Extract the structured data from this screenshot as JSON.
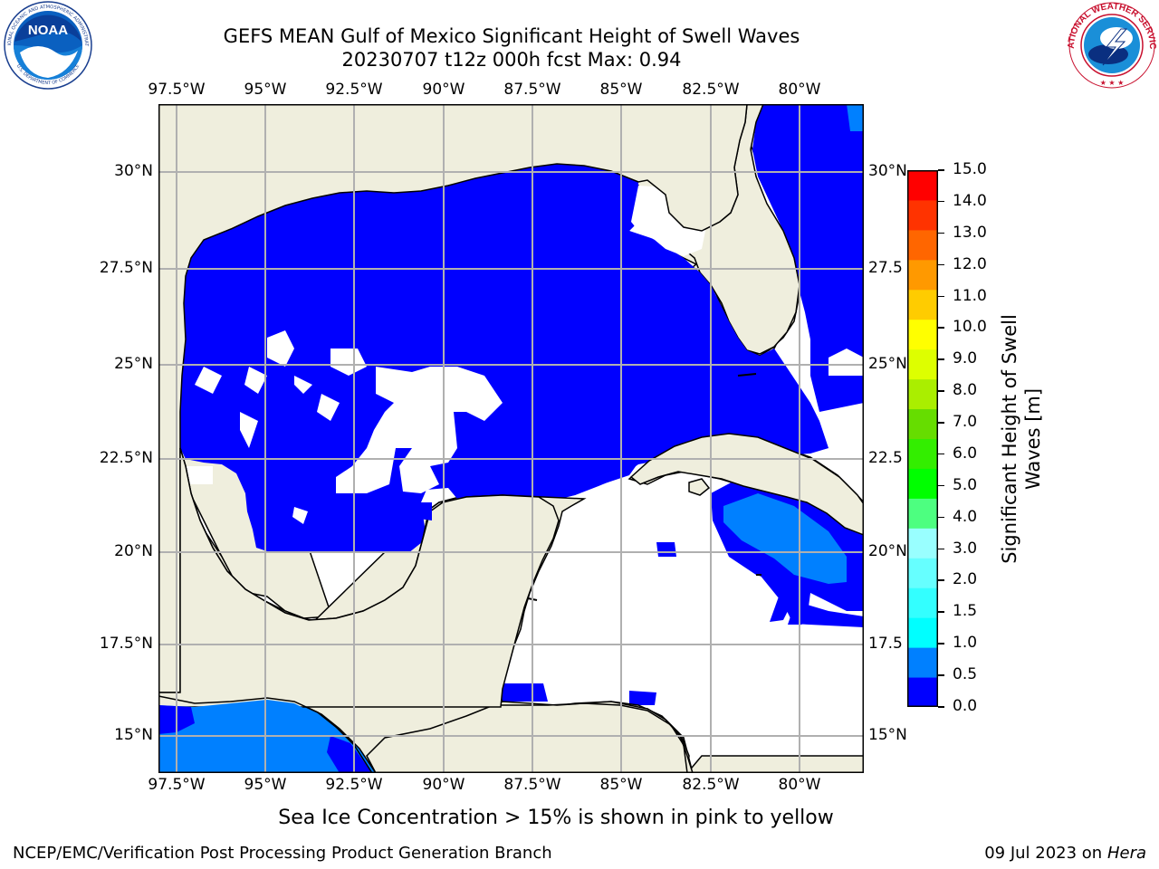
{
  "header": {
    "title_line1": "GEFS MEAN Gulf of Mexico Significant Height of Swell Waves",
    "title_line2": "20230707 t12z 000h fcst   Max: 0.94"
  },
  "logos": {
    "noaa_text": "NOAA",
    "noaa_ring_text": "NATIONAL OCEANIC AND ATMOSPHERIC ADMINISTRATION",
    "noaa_ring_bottom": "U.S. DEPARTMENT OF COMMERCE",
    "nws_ring_text": "NATIONAL WEATHER SERVICE"
  },
  "map": {
    "lon_labels": [
      "97.5°W",
      "95°W",
      "92.5°W",
      "90°W",
      "87.5°W",
      "85°W",
      "82.5°W",
      "80°W"
    ],
    "lat_labels": [
      "30°N",
      "27.5°N",
      "25°N",
      "22.5°N",
      "20°N",
      "17.5°N",
      "15°N"
    ],
    "right_lat_labels": [
      "30°N",
      "27.5",
      "25°N",
      "22.5",
      "20°N",
      "17.5",
      "15°N"
    ],
    "colors": {
      "land": "#efeedd",
      "water_low": "#0000ff",
      "water_mid": "#0080ff",
      "grid": "#b0b0b0"
    }
  },
  "colorbar": {
    "label_line1": "Significant Height of Swell",
    "label_line2": "Waves [m]",
    "ticks": [
      "0.0",
      "0.5",
      "1.0",
      "1.5",
      "2.0",
      "3.0",
      "4.0",
      "5.0",
      "6.0",
      "7.0",
      "8.0",
      "9.0",
      "10.0",
      "11.0",
      "12.0",
      "13.0",
      "14.0",
      "15.0"
    ],
    "colors": [
      "#0000ff",
      "#0080ff",
      "#00ffff",
      "#33ffff",
      "#66ffff",
      "#99ffff",
      "#4dff80",
      "#00ff00",
      "#33ee00",
      "#66dd00",
      "#aaee00",
      "#ddff00",
      "#ffff00",
      "#ffcc00",
      "#ff9900",
      "#ff6600",
      "#ff3300",
      "#ff0000"
    ]
  },
  "note": "Sea Ice Concentration > 15% is shown in pink to yellow",
  "footer": {
    "left": "NCEP/EMC/Verification Post Processing Product Generation Branch",
    "right_prefix": "09 Jul 2023 on ",
    "right_host": "Hera"
  }
}
